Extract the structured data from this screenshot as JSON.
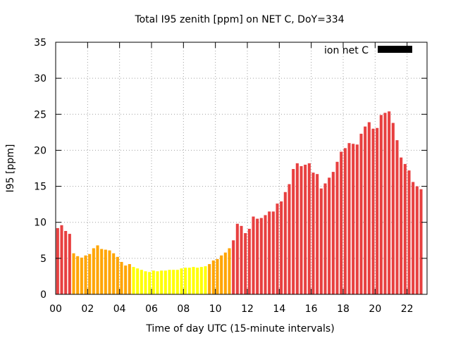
{
  "chart_data": {
    "type": "bar",
    "title": "Total I95 zenith [ppm] on NET C, DoY=334",
    "xlabel": "Time of day UTC (15-minute intervals)",
    "ylabel": "I95 [ppm]",
    "ylim": [
      0,
      35
    ],
    "xlim": [
      0,
      23.25
    ],
    "yticks": [
      0,
      5,
      10,
      15,
      20,
      25,
      30,
      35
    ],
    "xticks": [
      {
        "value": 0,
        "label": "00"
      },
      {
        "value": 2,
        "label": "02"
      },
      {
        "value": 4,
        "label": "04"
      },
      {
        "value": 6,
        "label": "06"
      },
      {
        "value": 8,
        "label": "08"
      },
      {
        "value": 10,
        "label": "10"
      },
      {
        "value": 12,
        "label": "12"
      },
      {
        "value": 14,
        "label": "14"
      },
      {
        "value": 16,
        "label": "16"
      },
      {
        "value": 18,
        "label": "18"
      },
      {
        "value": 20,
        "label": "20"
      },
      {
        "value": 22,
        "label": "22"
      }
    ],
    "grid": true,
    "legend": {
      "position": "top-right",
      "label": "ion net C",
      "color": "#000000"
    },
    "bar_interval_hours": 0.25,
    "color_levels": [
      {
        "below": 4,
        "color": "#ffff00"
      },
      {
        "below": 7.5,
        "color": "#ffa500"
      },
      {
        "below": 1000,
        "color": "#e84040"
      }
    ],
    "values": [
      9.2,
      9.6,
      8.8,
      8.4,
      5.7,
      5.3,
      5.1,
      5.4,
      5.6,
      6.4,
      6.8,
      6.3,
      6.2,
      6.1,
      5.7,
      5.2,
      4.5,
      4.0,
      4.2,
      3.8,
      3.6,
      3.4,
      3.2,
      3.1,
      3.3,
      3.2,
      3.3,
      3.3,
      3.4,
      3.4,
      3.4,
      3.6,
      3.7,
      3.7,
      3.8,
      3.7,
      3.8,
      3.9,
      4.2,
      4.7,
      4.9,
      5.4,
      5.8,
      6.4,
      7.5,
      9.8,
      9.5,
      8.5,
      9.1,
      10.8,
      10.5,
      10.6,
      11.0,
      11.5,
      11.5,
      12.6,
      12.9,
      14.2,
      15.3,
      17.4,
      18.2,
      17.8,
      18.0,
      18.2,
      16.9,
      16.7,
      14.7,
      15.4,
      16.2,
      17.0,
      18.4,
      19.8,
      20.3,
      21.0,
      20.9,
      20.8,
      22.3,
      23.3,
      23.9,
      23.0,
      23.1,
      24.9,
      25.2,
      25.4,
      23.8,
      21.4,
      19.0,
      18.1,
      17.2,
      15.6,
      15.0,
      14.6
    ]
  }
}
